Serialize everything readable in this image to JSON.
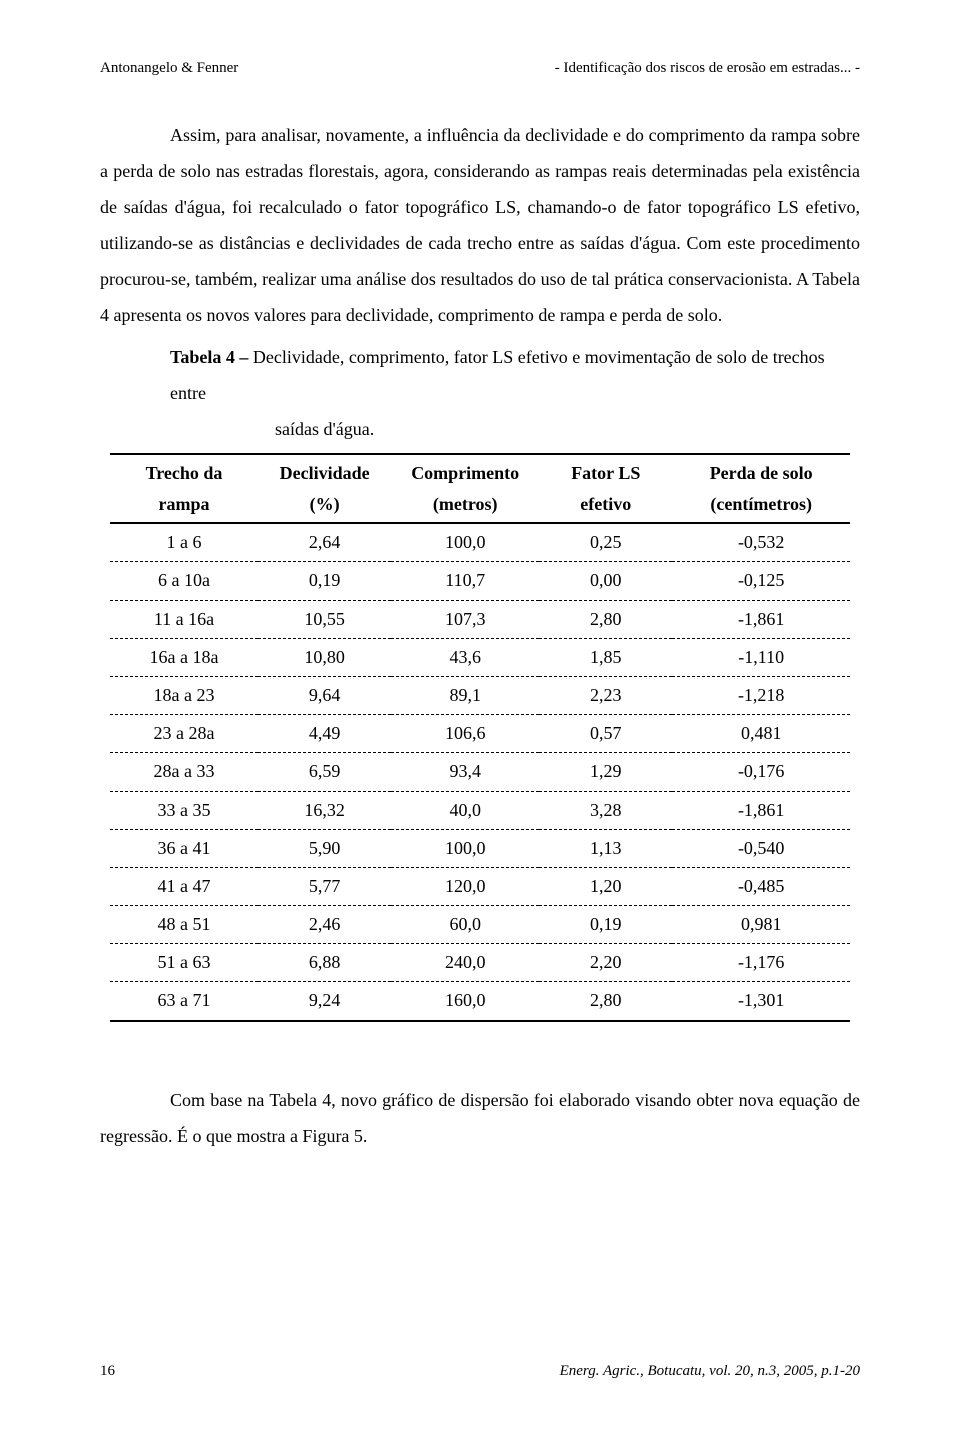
{
  "header": {
    "left": "Antonangelo & Fenner",
    "right": "- Identificação dos riscos de erosão em estradas... -"
  },
  "paragraphs": {
    "p1": "Assim, para analisar, novamente, a influência da declividade e do comprimento da rampa sobre a perda de solo nas estradas florestais, agora, considerando as rampas reais determinadas pela existência de saídas d'água, foi recalculado o fator topográfico LS, chamando-o de fator topográfico LS efetivo, utilizando-se as distâncias e declividades de cada trecho entre as saídas d'água. Com este procedimento procurou-se, também, realizar uma análise dos resultados do uso de tal prática conservacionista. A Tabela 4 apresenta os novos valores para declividade, comprimento de rampa e perda de solo.",
    "p2": "Com base na Tabela 4, novo gráfico de dispersão foi elaborado visando obter nova equação de regressão. É o que mostra a Figura 5."
  },
  "caption": {
    "label": "Tabela 4 –",
    "line1": " Declividade, comprimento, fator LS efetivo e movimentação de solo de trechos entre",
    "line2": "saídas d'água."
  },
  "table": {
    "columns": [
      {
        "line1": "Trecho da",
        "line2": "rampa",
        "width": "20%"
      },
      {
        "line1": "Declividade",
        "line2": "(%)",
        "width": "18%"
      },
      {
        "line1": "Comprimento",
        "line2": "(metros)",
        "width": "20%"
      },
      {
        "line1": "Fator LS",
        "line2": "efetivo",
        "width": "18%"
      },
      {
        "line1": "Perda de solo",
        "line2": "(centímetros)",
        "width": "24%"
      }
    ],
    "rows": [
      [
        "1 a 6",
        "2,64",
        "100,0",
        "0,25",
        "-0,532"
      ],
      [
        "6 a 10a",
        "0,19",
        "110,7",
        "0,00",
        "-0,125"
      ],
      [
        "11 a 16a",
        "10,55",
        "107,3",
        "2,80",
        "-1,861"
      ],
      [
        "16a a 18a",
        "10,80",
        "43,6",
        "1,85",
        "-1,110"
      ],
      [
        "18a a 23",
        "9,64",
        "89,1",
        "2,23",
        "-1,218"
      ],
      [
        "23 a 28a",
        "4,49",
        "106,6",
        "0,57",
        "0,481"
      ],
      [
        "28a a 33",
        "6,59",
        "93,4",
        "1,29",
        "-0,176"
      ],
      [
        "33 a 35",
        "16,32",
        "40,0",
        "3,28",
        "-1,861"
      ],
      [
        "36 a 41",
        "5,90",
        "100,0",
        "1,13",
        "-0,540"
      ],
      [
        "41 a 47",
        "5,77",
        "120,0",
        "1,20",
        "-0,485"
      ],
      [
        "48 a 51",
        "2,46",
        "60,0",
        "0,19",
        "0,981"
      ],
      [
        "51 a 63",
        "6,88",
        "240,0",
        "2,20",
        "-1,176"
      ],
      [
        "63 a 71",
        "9,24",
        "160,0",
        "2,80",
        "-1,301"
      ]
    ]
  },
  "footer": {
    "page": "16",
    "citation": "Energ. Agric., Botucatu, vol. 20, n.3, 2005, p.1-20"
  }
}
